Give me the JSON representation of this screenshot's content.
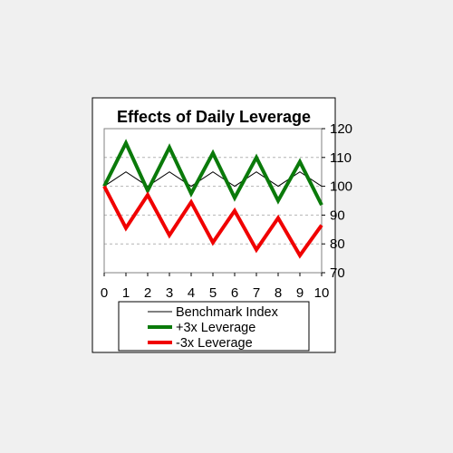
{
  "chart_data": {
    "type": "line",
    "title": "Effects of Daily Leverage",
    "xlabel": "",
    "ylabel": "",
    "x": [
      0,
      1,
      2,
      3,
      4,
      5,
      6,
      7,
      8,
      9,
      10
    ],
    "x_tick_labels": [
      "0",
      "1",
      "2",
      "3",
      "4",
      "5",
      "6",
      "7",
      "8",
      "9",
      "10"
    ],
    "y_tick_labels": [
      "70",
      "80",
      "90",
      "100",
      "110",
      "120"
    ],
    "xlim": [
      0,
      10
    ],
    "ylim": [
      70,
      120
    ],
    "y_axis_side": "right",
    "grid": "horizontal dashed",
    "legend_position": "bottom",
    "series": [
      {
        "name": "Benchmark Index",
        "color": "#000000",
        "values": [
          100,
          105,
          100,
          105,
          100,
          105,
          100,
          105,
          100,
          105,
          100
        ]
      },
      {
        "name": "+3x Leverage",
        "color": "#0a7a0a",
        "values": [
          100,
          115,
          98.5,
          113.5,
          97.5,
          111.5,
          96,
          110,
          95,
          108.5,
          93.5
        ]
      },
      {
        "name": "-3x Leverage",
        "color": "#f00000",
        "values": [
          100,
          85.5,
          97,
          83,
          94.5,
          80.5,
          91.5,
          78,
          89,
          76,
          86.5
        ]
      }
    ]
  }
}
